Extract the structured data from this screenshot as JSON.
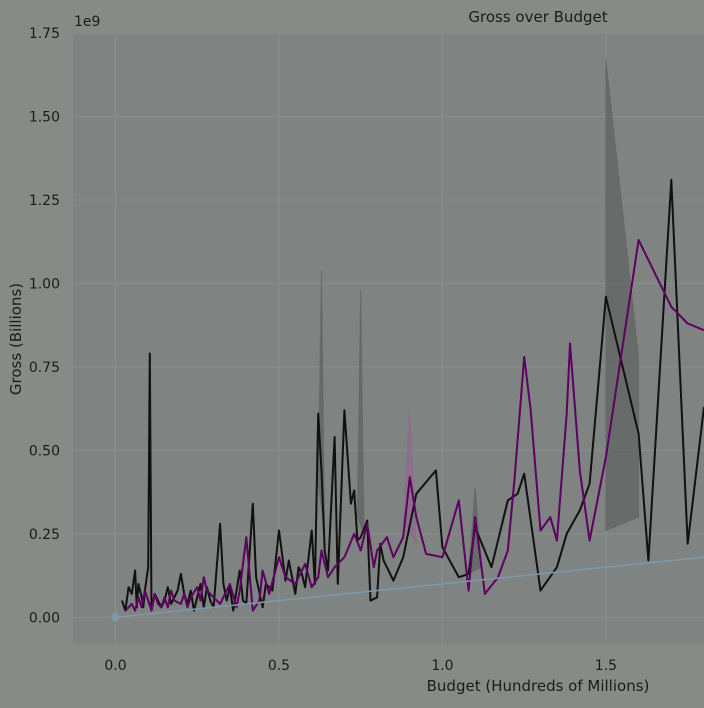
{
  "colors": {
    "background": "#878a87",
    "plot_area": "#7f8382",
    "grid": "#8b908e",
    "series_black": "#111111",
    "series_purple": "#5e0060",
    "band_black": "#5f6362",
    "band_purple": "#8e6a8c",
    "trend": "#7f98a8"
  },
  "chart_data": {
    "type": "line",
    "title": "Gross over Budget",
    "xlabel": "Budget (Hundreds of Millions)",
    "ylabel": "Gross (Billions)",
    "offset_label": "1e9",
    "xlim": [
      -0.13,
      1.8
    ],
    "ylim": [
      -0.08,
      1.75
    ],
    "x_ticks": [
      0.0,
      0.5,
      1.0,
      1.5
    ],
    "x_tick_labels": [
      "0.0",
      "0.5",
      "1.0",
      "1.5"
    ],
    "y_ticks": [
      0.0,
      0.25,
      0.5,
      0.75,
      1.0,
      1.25,
      1.5,
      1.75
    ],
    "y_tick_labels": [
      "0.00",
      "0.25",
      "0.50",
      "0.75",
      "1.00",
      "1.25",
      "1.50",
      "1.75"
    ],
    "grid": true,
    "series": [
      {
        "color_key": "series_black",
        "x": [
          0.02,
          0.03,
          0.04,
          0.05,
          0.06,
          0.065,
          0.07,
          0.08,
          0.085,
          0.09,
          0.1,
          0.105,
          0.11,
          0.12,
          0.13,
          0.14,
          0.15,
          0.16,
          0.17,
          0.18,
          0.19,
          0.2,
          0.21,
          0.22,
          0.23,
          0.24,
          0.25,
          0.26,
          0.27,
          0.28,
          0.29,
          0.3,
          0.32,
          0.33,
          0.34,
          0.35,
          0.36,
          0.37,
          0.38,
          0.39,
          0.4,
          0.42,
          0.43,
          0.45,
          0.46,
          0.47,
          0.48,
          0.5,
          0.52,
          0.53,
          0.55,
          0.56,
          0.57,
          0.58,
          0.6,
          0.61,
          0.62,
          0.63,
          0.64,
          0.65,
          0.67,
          0.68,
          0.7,
          0.72,
          0.73,
          0.74,
          0.75,
          0.77,
          0.78,
          0.8,
          0.81,
          0.82,
          0.85,
          0.88,
          0.92,
          0.98,
          1.0,
          1.05,
          1.08,
          1.1,
          1.15,
          1.2,
          1.23,
          1.25,
          1.3,
          1.35,
          1.38,
          1.42,
          1.45,
          1.5,
          1.6,
          1.63,
          1.7,
          1.75,
          1.8
        ],
        "y": [
          0.05,
          0.02,
          0.09,
          0.07,
          0.14,
          0.03,
          0.1,
          0.06,
          0.03,
          0.08,
          0.15,
          0.79,
          0.02,
          0.07,
          0.05,
          0.03,
          0.05,
          0.09,
          0.04,
          0.06,
          0.08,
          0.13,
          0.07,
          0.04,
          0.08,
          0.02,
          0.06,
          0.1,
          0.03,
          0.09,
          0.05,
          0.03,
          0.28,
          0.1,
          0.05,
          0.09,
          0.02,
          0.08,
          0.14,
          0.05,
          0.04,
          0.34,
          0.12,
          0.03,
          0.1,
          0.09,
          0.08,
          0.26,
          0.11,
          0.17,
          0.07,
          0.15,
          0.13,
          0.09,
          0.26,
          0.1,
          0.61,
          0.44,
          0.2,
          0.14,
          0.54,
          0.1,
          0.62,
          0.34,
          0.38,
          0.23,
          0.24,
          0.29,
          0.05,
          0.06,
          0.22,
          0.17,
          0.11,
          0.18,
          0.37,
          0.44,
          0.21,
          0.12,
          0.13,
          0.27,
          0.15,
          0.35,
          0.37,
          0.43,
          0.08,
          0.15,
          0.25,
          0.32,
          0.4,
          0.96,
          0.55,
          0.17,
          1.31,
          0.22,
          0.63
        ]
      },
      {
        "color_key": "series_purple",
        "x": [
          0.03,
          0.04,
          0.05,
          0.06,
          0.07,
          0.08,
          0.09,
          0.1,
          0.11,
          0.12,
          0.13,
          0.14,
          0.15,
          0.16,
          0.17,
          0.18,
          0.2,
          0.21,
          0.22,
          0.23,
          0.25,
          0.26,
          0.27,
          0.28,
          0.3,
          0.32,
          0.35,
          0.37,
          0.38,
          0.4,
          0.42,
          0.44,
          0.45,
          0.47,
          0.5,
          0.52,
          0.55,
          0.58,
          0.6,
          0.62,
          0.63,
          0.65,
          0.67,
          0.7,
          0.73,
          0.75,
          0.77,
          0.79,
          0.8,
          0.83,
          0.85,
          0.88,
          0.9,
          0.92,
          0.95,
          1.0,
          1.05,
          1.08,
          1.1,
          1.13,
          1.17,
          1.2,
          1.22,
          1.25,
          1.27,
          1.3,
          1.33,
          1.35,
          1.38,
          1.39,
          1.42,
          1.45,
          1.5,
          1.6,
          1.7,
          1.75,
          1.8
        ],
        "y": [
          0.02,
          0.03,
          0.04,
          0.02,
          0.06,
          0.03,
          0.08,
          0.05,
          0.02,
          0.07,
          0.04,
          0.03,
          0.06,
          0.03,
          0.08,
          0.05,
          0.04,
          0.07,
          0.03,
          0.06,
          0.09,
          0.05,
          0.12,
          0.08,
          0.06,
          0.04,
          0.1,
          0.03,
          0.08,
          0.24,
          0.02,
          0.05,
          0.14,
          0.07,
          0.18,
          0.12,
          0.1,
          0.16,
          0.09,
          0.12,
          0.2,
          0.12,
          0.15,
          0.18,
          0.25,
          0.2,
          0.28,
          0.15,
          0.2,
          0.24,
          0.18,
          0.24,
          0.42,
          0.3,
          0.19,
          0.18,
          0.35,
          0.08,
          0.3,
          0.07,
          0.12,
          0.2,
          0.41,
          0.78,
          0.62,
          0.26,
          0.3,
          0.23,
          0.61,
          0.82,
          0.44,
          0.23,
          0.48,
          1.13,
          0.93,
          0.88,
          0.86
        ]
      },
      {
        "color_key": "trend",
        "x": [
          0.0,
          1.8
        ],
        "y": [
          0.0,
          0.18
        ]
      }
    ],
    "bands": [
      {
        "color_key": "band_black",
        "x": [
          1.5,
          1.5,
          1.6,
          1.6
        ],
        "y": [
          0.26,
          1.67,
          0.78,
          0.3
        ]
      },
      {
        "color_key": "band_black",
        "x": [
          0.62,
          0.63,
          0.64
        ],
        "y": [
          0.4,
          1.04,
          0.25
        ]
      },
      {
        "color_key": "band_black",
        "x": [
          0.74,
          0.75,
          0.76
        ],
        "y": [
          0.3,
          0.98,
          0.25
        ]
      },
      {
        "color_key": "band_black",
        "x": [
          1.08,
          1.1,
          1.12
        ],
        "y": [
          0.13,
          0.39,
          0.15
        ]
      },
      {
        "color_key": "band_purple",
        "x": [
          0.88,
          0.9,
          0.92
        ],
        "y": [
          0.28,
          0.63,
          0.22
        ]
      }
    ]
  }
}
